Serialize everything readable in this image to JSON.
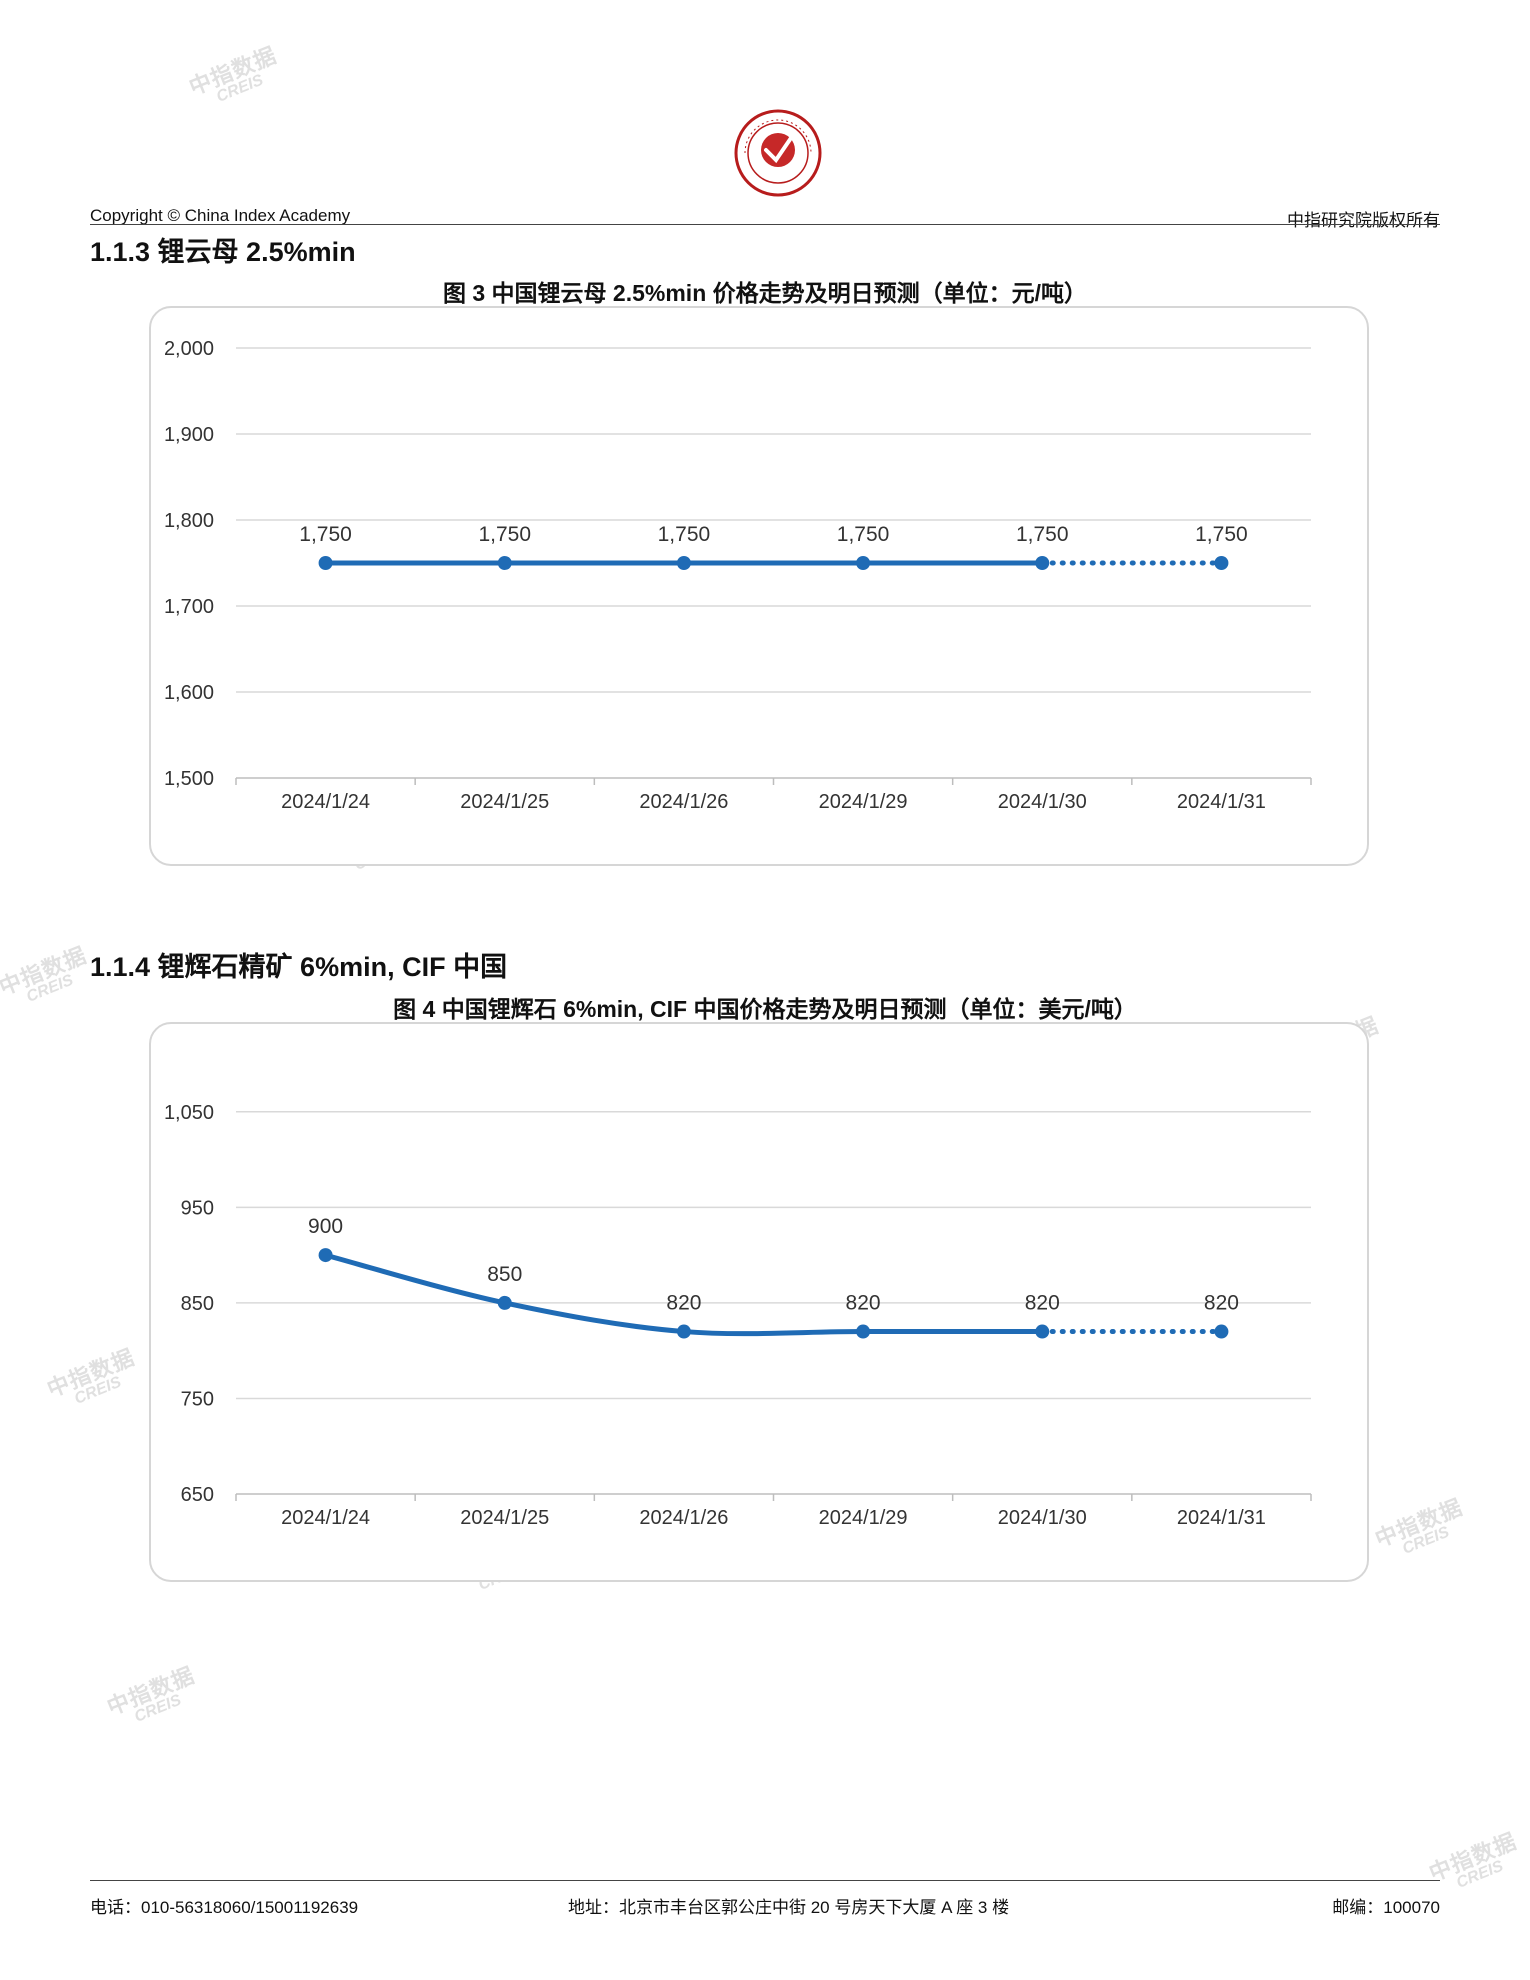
{
  "header": {
    "copyright": "Copyright © China Index Academy",
    "rights": "中指研究院版权所有",
    "logo_text": "CHINA INDEX ACADEMY"
  },
  "watermark": {
    "cn": "中指数据",
    "en": "CREIS"
  },
  "sections": [
    {
      "title": "1.1.3 锂云母 2.5%min",
      "figure_title": "图 3 中国锂云母 2.5%min 价格走势及明日预测（单位：元/吨）"
    },
    {
      "title": "1.1.4 锂辉石精矿 6%min, CIF 中国",
      "figure_title": "图 4 中国锂辉石 6%min, CIF 中国价格走势及明日预测（单位：美元/吨）"
    }
  ],
  "chart_data": [
    {
      "type": "line",
      "categories": [
        "2024/1/24",
        "2024/1/25",
        "2024/1/26",
        "2024/1/29",
        "2024/1/30",
        "2024/1/31"
      ],
      "values": [
        1750,
        1750,
        1750,
        1750,
        1750,
        1750
      ],
      "data_labels": [
        "1,750",
        "1,750",
        "1,750",
        "1,750",
        "1,750",
        "1,750"
      ],
      "forecast_from_index": 4,
      "ylim": [
        1500,
        2000
      ],
      "yticks": [
        1500,
        1600,
        1700,
        1800,
        1900,
        2000
      ],
      "ytick_labels": [
        "1,500",
        "1,600",
        "1,700",
        "1,800",
        "1,900",
        "2,000"
      ],
      "grid": true,
      "smooth": false,
      "line_color": "#1f6bb5"
    },
    {
      "type": "line",
      "categories": [
        "2024/1/24",
        "2024/1/25",
        "2024/1/26",
        "2024/1/29",
        "2024/1/30",
        "2024/1/31"
      ],
      "values": [
        900,
        850,
        820,
        820,
        820,
        820
      ],
      "data_labels": [
        "900",
        "850",
        "820",
        "820",
        "820",
        "820"
      ],
      "forecast_from_index": 4,
      "ylim": [
        650,
        1100
      ],
      "yticks": [
        650,
        750,
        850,
        950,
        1050
      ],
      "ytick_labels": [
        "650",
        "750",
        "850",
        "950",
        "1,050"
      ],
      "grid": true,
      "smooth": true,
      "line_color": "#1f6bb5"
    }
  ],
  "footer": {
    "phone": "电话：010-56318060/15001192639",
    "address": "地址：北京市丰台区郭公庄中街 20 号房天下大厦 A 座 3 楼",
    "postcode": "邮编：100070"
  }
}
